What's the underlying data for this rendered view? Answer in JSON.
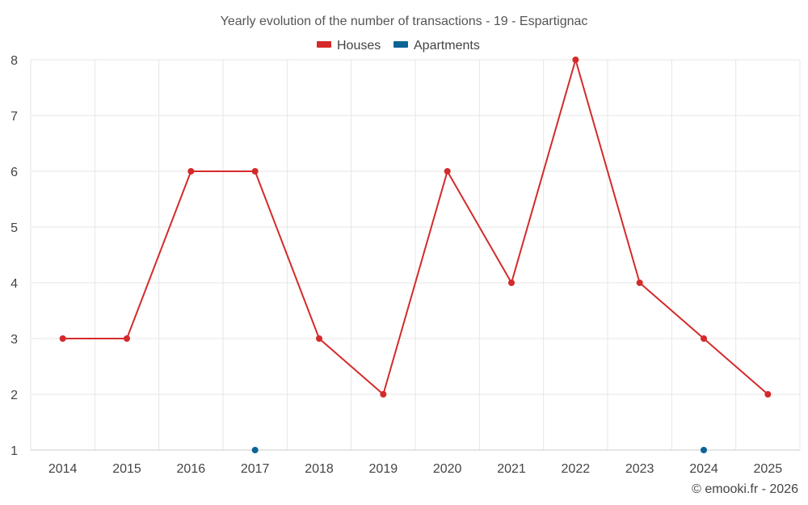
{
  "chart_data": {
    "type": "line",
    "title": "Yearly evolution of the number of transactions - 19 - Espartignac",
    "x": [
      "2014",
      "2015",
      "2016",
      "2017",
      "2018",
      "2019",
      "2020",
      "2021",
      "2022",
      "2023",
      "2024",
      "2025"
    ],
    "y_ticks": [
      "1",
      "2",
      "3",
      "4",
      "5",
      "6",
      "7",
      "8"
    ],
    "ylim": [
      1,
      8
    ],
    "grid": true,
    "legend_position": "top-center",
    "series": [
      {
        "name": "Houses",
        "color": "#d42a2a",
        "values": [
          3,
          3,
          6,
          6,
          3,
          2,
          6,
          4,
          8,
          4,
          3,
          2
        ]
      },
      {
        "name": "Apartments",
        "color": "#0a6496",
        "values": [
          null,
          null,
          null,
          1,
          null,
          null,
          null,
          null,
          null,
          null,
          1,
          null
        ]
      }
    ]
  },
  "credit": "© emooki.fr - 2026"
}
